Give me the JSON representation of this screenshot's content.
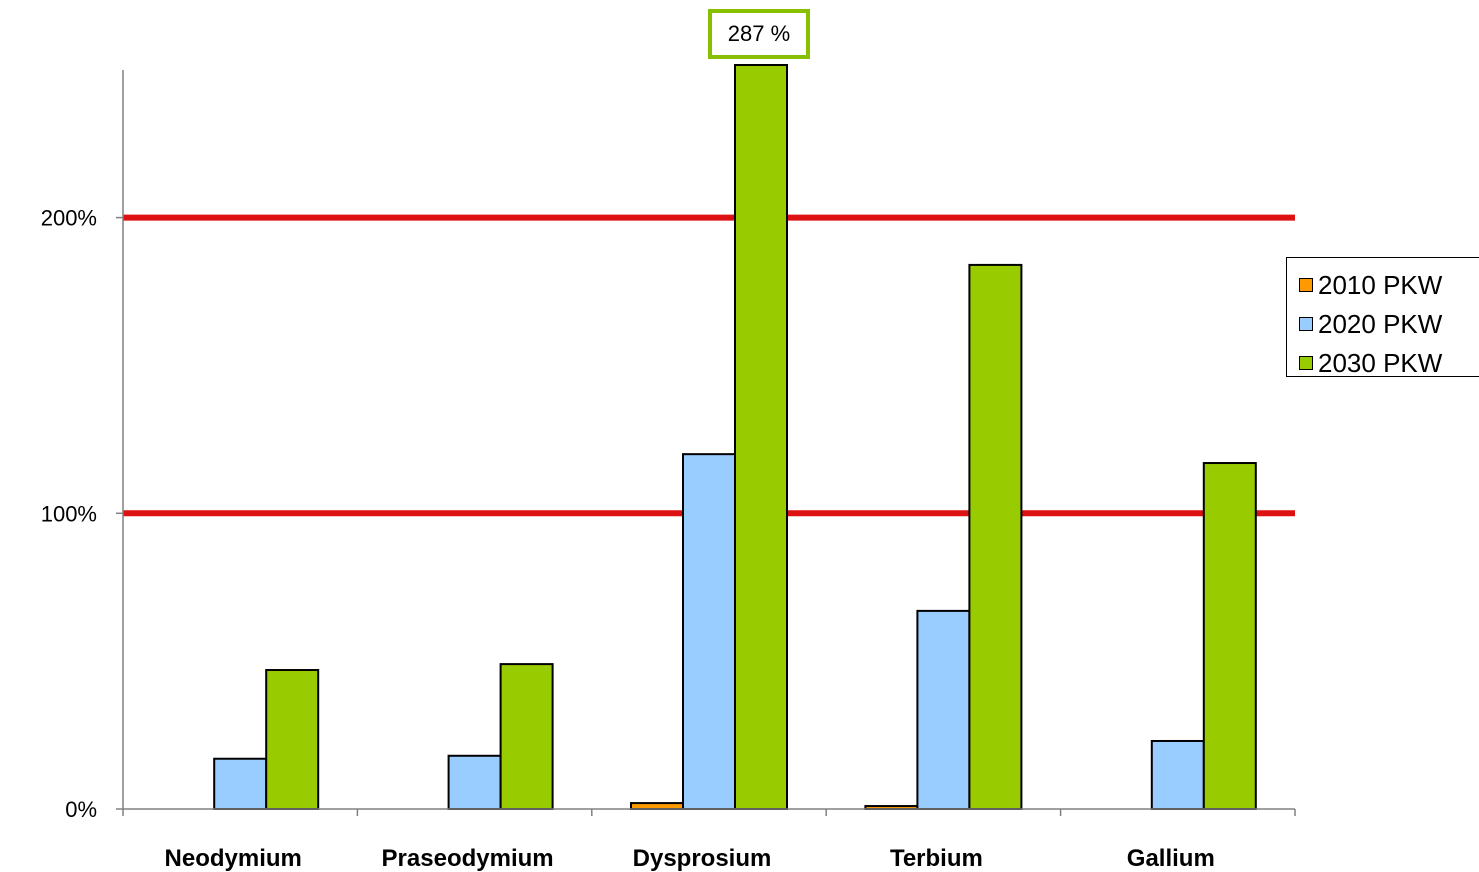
{
  "chart_data": {
    "type": "bar",
    "categories": [
      "Neodymium",
      "Praseodymium",
      "Dysprosium",
      "Terbium",
      "Gallium"
    ],
    "series": [
      {
        "name": "2010 PKW",
        "color": "#ff9900",
        "values": [
          0,
          0,
          2,
          1,
          0
        ]
      },
      {
        "name": "2020 PKW",
        "color": "#99ccff",
        "values": [
          17,
          18,
          120,
          67,
          23
        ]
      },
      {
        "name": "2030 PKW",
        "color": "#99cc00",
        "values": [
          47,
          49,
          287,
          184,
          117
        ]
      }
    ],
    "yticks": [
      {
        "value": 0,
        "label": "0%"
      },
      {
        "value": 100,
        "label": "100%"
      },
      {
        "value": 200,
        "label": "200%"
      }
    ],
    "ylim": [
      0,
      250
    ],
    "reference_lines": [
      100,
      200
    ],
    "reference_line_color": "#dd1111",
    "annotation": {
      "label": "287 %",
      "series": "2030 PKW",
      "category": "Dysprosium",
      "border_color": "#88c000"
    },
    "legend_position": "right",
    "grid": false,
    "title": "",
    "xlabel": "",
    "ylabel": ""
  }
}
